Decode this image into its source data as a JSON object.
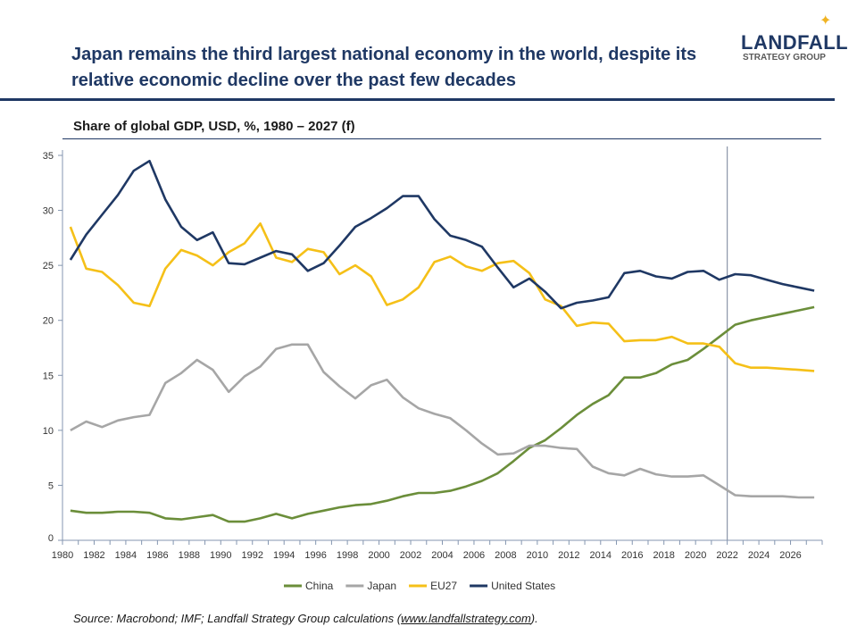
{
  "header": {
    "title": "Japan remains the third largest national economy in the world, despite its relative economic decline over the past few decades",
    "logo_text": "LANDFALL",
    "logo_subtext": "STRATEGY GROUP"
  },
  "subtitle": "Share of global GDP, USD, %, 1980 – 2027 (f)",
  "source": {
    "prefix": "Source: Macrobond; IMF; Landfall Strategy Group calculations (",
    "link": "www.landfallstrategy.com",
    "suffix": ")."
  },
  "chart_data": {
    "type": "line",
    "title": "Share of global GDP, USD, %, 1980 – 2027 (f)",
    "xlabel": "",
    "ylabel": "",
    "ylim": [
      0,
      35
    ],
    "yticks": [
      "0",
      "5",
      "10",
      "15",
      "20",
      "25",
      "30",
      "35"
    ],
    "xticks": [
      "1980",
      "1982",
      "1984",
      "1986",
      "1988",
      "1990",
      "1992",
      "1994",
      "1996",
      "1998",
      "2000",
      "2002",
      "2004",
      "2006",
      "2008",
      "2010",
      "2012",
      "2014",
      "2016",
      "2018",
      "2020",
      "2022",
      "2024",
      "2026"
    ],
    "x": [
      1980,
      1981,
      1982,
      1983,
      1984,
      1985,
      1986,
      1987,
      1988,
      1989,
      1990,
      1991,
      1992,
      1993,
      1994,
      1995,
      1996,
      1997,
      1998,
      1999,
      2000,
      2001,
      2002,
      2003,
      2004,
      2005,
      2006,
      2007,
      2008,
      2009,
      2010,
      2011,
      2012,
      2013,
      2014,
      2015,
      2016,
      2017,
      2018,
      2019,
      2020,
      2021,
      2022,
      2023,
      2024,
      2025,
      2026,
      2027
    ],
    "forecast_marker_year": 2022,
    "grid": false,
    "legend_position": "bottom",
    "series": [
      {
        "name": "China",
        "color": "#6b8e3a",
        "values": [
          2.7,
          2.5,
          2.5,
          2.6,
          2.6,
          2.5,
          2.0,
          1.9,
          2.1,
          2.3,
          1.7,
          1.7,
          2.0,
          2.4,
          2.0,
          2.4,
          2.7,
          3.0,
          3.2,
          3.3,
          3.6,
          4.0,
          4.3,
          4.3,
          4.5,
          4.9,
          5.4,
          6.1,
          7.2,
          8.4,
          9.1,
          10.2,
          11.4,
          12.4,
          13.2,
          14.8,
          14.8,
          15.2,
          16.0,
          16.4,
          17.4,
          18.5,
          19.6,
          20.0,
          20.3,
          20.6,
          20.9,
          21.2
        ]
      },
      {
        "name": "Japan",
        "color": "#a6a6a6",
        "values": [
          10.0,
          10.8,
          10.3,
          10.9,
          11.2,
          11.4,
          14.3,
          15.2,
          16.4,
          15.5,
          13.5,
          14.9,
          15.8,
          17.4,
          17.8,
          17.8,
          15.3,
          14.0,
          12.9,
          14.1,
          14.6,
          13.0,
          12.0,
          11.5,
          11.1,
          10.0,
          8.8,
          7.8,
          7.9,
          8.6,
          8.6,
          8.4,
          8.3,
          6.7,
          6.1,
          5.9,
          6.5,
          6.0,
          5.8,
          5.8,
          5.9,
          5.0,
          4.1,
          4.0,
          4.0,
          4.0,
          3.9,
          3.9
        ]
      },
      {
        "name": "EU27",
        "color": "#f5c018",
        "values": [
          28.5,
          24.7,
          24.4,
          23.2,
          21.6,
          21.3,
          24.7,
          26.4,
          25.9,
          25.0,
          26.2,
          27.0,
          28.8,
          25.7,
          25.3,
          26.5,
          26.2,
          24.2,
          25.0,
          24.0,
          21.4,
          21.9,
          23.0,
          25.3,
          25.8,
          24.9,
          24.5,
          25.2,
          25.4,
          24.3,
          21.9,
          21.3,
          19.5,
          19.8,
          19.7,
          18.1,
          18.2,
          18.2,
          18.5,
          17.9,
          17.9,
          17.6,
          16.1,
          15.7,
          15.7,
          15.6,
          15.5,
          15.4
        ]
      },
      {
        "name": "United States",
        "color": "#1f3864",
        "values": [
          25.5,
          27.8,
          29.6,
          31.4,
          33.6,
          34.5,
          31.0,
          28.5,
          27.3,
          28.0,
          25.2,
          25.1,
          25.7,
          26.3,
          26.0,
          24.5,
          25.2,
          26.8,
          28.5,
          29.3,
          30.2,
          31.3,
          31.3,
          29.2,
          27.7,
          27.3,
          26.7,
          24.8,
          23.0,
          23.8,
          22.6,
          21.1,
          21.6,
          21.8,
          22.1,
          24.3,
          24.5,
          24.0,
          23.8,
          24.4,
          24.5,
          23.7,
          24.2,
          24.1,
          23.7,
          23.3,
          23.0,
          22.7
        ]
      }
    ]
  }
}
